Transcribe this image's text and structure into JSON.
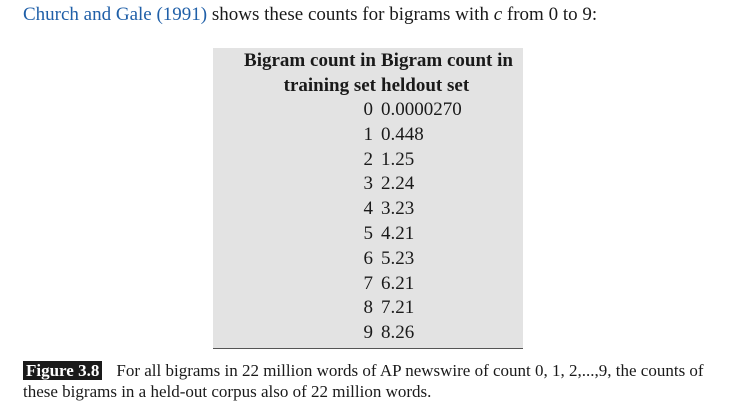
{
  "intro": {
    "citation": "Church and Gale (1991)",
    "text_before_var": " shows these counts for bigrams with ",
    "var": "c",
    "text_after_var": " from 0 to 9:"
  },
  "table": {
    "headers": [
      "Bigram count in training set",
      "Bigram count in heldout set"
    ],
    "header_col1_line1": "Bigram count in",
    "header_col1_line2": "training set",
    "header_col2_line1": "Bigram count in",
    "header_col2_line2": "heldout set",
    "rows": [
      [
        "0",
        "0.0000270"
      ],
      [
        "1",
        "0.448"
      ],
      [
        "2",
        "1.25"
      ],
      [
        "3",
        "2.24"
      ],
      [
        "4",
        "3.23"
      ],
      [
        "5",
        "4.21"
      ],
      [
        "6",
        "5.23"
      ],
      [
        "7",
        "6.21"
      ],
      [
        "8",
        "7.21"
      ],
      [
        "9",
        "8.26"
      ]
    ]
  },
  "figure": {
    "label": "Figure 3.8",
    "caption": "For all bigrams in 22 million words of AP newswire of count 0, 1, 2,...,9, the counts of these bigrams in a held-out corpus also of 22 million words."
  }
}
